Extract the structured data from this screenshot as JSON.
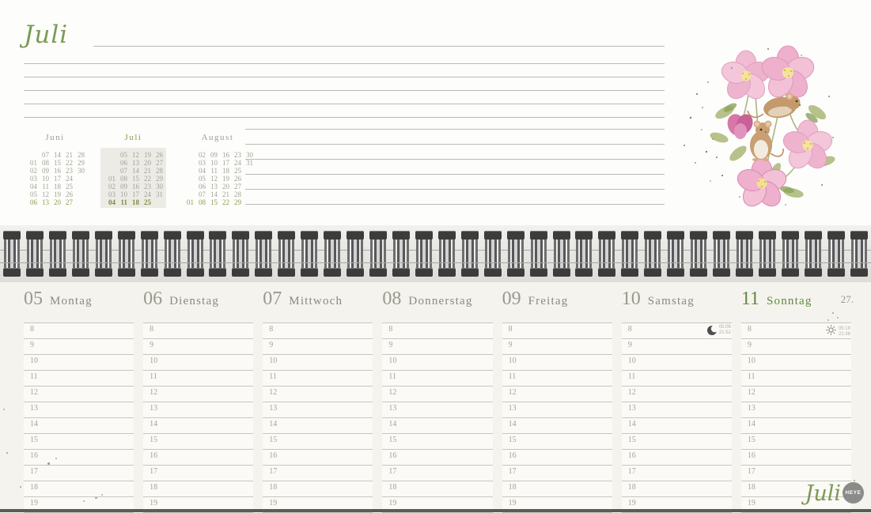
{
  "accent_color": "#7a9a55",
  "top": {
    "title": "Juli"
  },
  "mini_calendars": {
    "months": [
      {
        "name": "Juni",
        "current": false,
        "rows": [
          [
            "",
            "07",
            "14",
            "21",
            "28"
          ],
          [
            "01",
            "08",
            "15",
            "22",
            "29"
          ],
          [
            "02",
            "09",
            "16",
            "23",
            "30"
          ],
          [
            "03",
            "10",
            "17",
            "24",
            ""
          ],
          [
            "04",
            "11",
            "18",
            "25",
            ""
          ],
          [
            "05",
            "12",
            "19",
            "26",
            ""
          ],
          [
            "06",
            "13",
            "20",
            "27",
            ""
          ]
        ]
      },
      {
        "name": "Juli",
        "current": true,
        "rows": [
          [
            "",
            "05",
            "12",
            "19",
            "26"
          ],
          [
            "",
            "06",
            "13",
            "20",
            "27"
          ],
          [
            "",
            "07",
            "14",
            "21",
            "28"
          ],
          [
            "01",
            "08",
            "15",
            "22",
            "29"
          ],
          [
            "02",
            "09",
            "16",
            "23",
            "30"
          ],
          [
            "03",
            "10",
            "17",
            "24",
            "31"
          ],
          [
            "04",
            "11",
            "18",
            "25",
            ""
          ]
        ]
      },
      {
        "name": "August",
        "current": false,
        "rows": [
          [
            "",
            "02",
            "09",
            "16",
            "23",
            "30"
          ],
          [
            "",
            "03",
            "10",
            "17",
            "24",
            "31"
          ],
          [
            "",
            "04",
            "11",
            "18",
            "25",
            ""
          ],
          [
            "",
            "05",
            "12",
            "19",
            "26",
            ""
          ],
          [
            "",
            "06",
            "13",
            "20",
            "27",
            ""
          ],
          [
            "",
            "07",
            "14",
            "21",
            "28",
            ""
          ],
          [
            "01",
            "08",
            "15",
            "22",
            "29",
            ""
          ]
        ]
      }
    ]
  },
  "week": {
    "number": "27.",
    "hours": [
      "8",
      "9",
      "10",
      "11",
      "12",
      "13",
      "14",
      "15",
      "16",
      "17",
      "18",
      "19"
    ],
    "days": [
      {
        "num": "05",
        "name": "Montag"
      },
      {
        "num": "06",
        "name": "Dienstag"
      },
      {
        "num": "07",
        "name": "Mittwoch"
      },
      {
        "num": "08",
        "name": "Donnerstag"
      },
      {
        "num": "09",
        "name": "Freitag"
      },
      {
        "num": "10",
        "name": "Samstag",
        "icon": "moon-icon",
        "times": [
          "05:06",
          "21:52"
        ]
      },
      {
        "num": "11",
        "name": "Sonntag",
        "accent": true,
        "icon": "sun-icon",
        "times": [
          "05:19",
          "21:36"
        ]
      }
    ]
  },
  "footer": {
    "month_script": "Juli",
    "logo": "HEYE"
  }
}
